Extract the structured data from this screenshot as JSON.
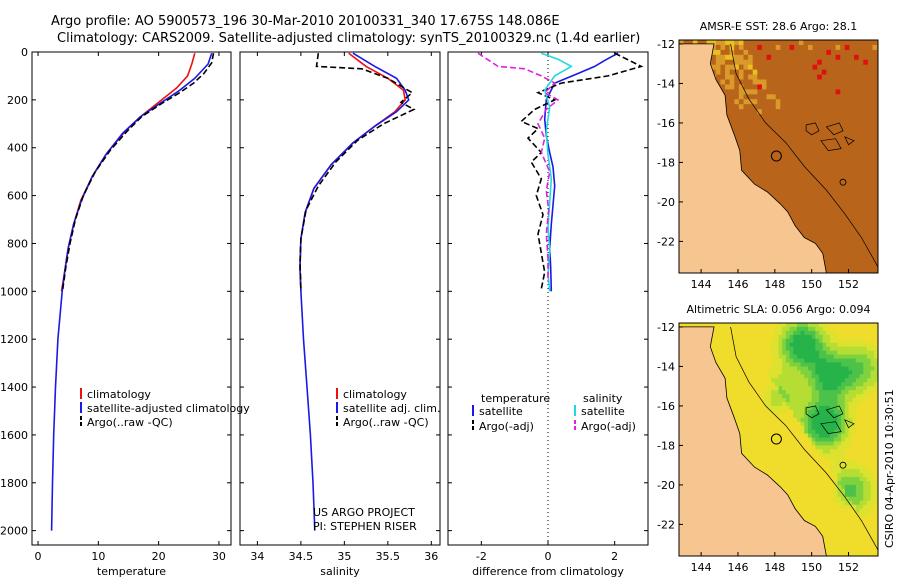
{
  "header": {
    "line1": "Argo profile: AO 5900573_196 30-Mar-2010 20100331_340 17.675S 148.086E",
    "line2": "Climatology: CARS2009. Satellite-adjusted climatology: synTS_20100329.nc (1.4d earlier)"
  },
  "colors": {
    "climatology": "#e11",
    "satellite": "#1a1ae6",
    "argo": "#000000",
    "sal_satellite": "#22d8e0",
    "sal_argo": "#e020e0",
    "land": "#f7c58f"
  },
  "chart_data": [
    {
      "id": "temperature",
      "type": "line",
      "xlabel": "temperature",
      "ylabel": "",
      "xlim": [
        -1,
        32
      ],
      "ylim": [
        2060,
        0
      ],
      "xticks": [
        0,
        10,
        20,
        30
      ],
      "yticks": [
        0,
        200,
        400,
        600,
        800,
        1000,
        1200,
        1400,
        1600,
        1800,
        2000
      ],
      "legend": [
        "climatology",
        "satellite-adjusted climatology",
        "Argo(..raw -QC)"
      ],
      "series": [
        {
          "name": "climatology",
          "style": "solid",
          "color": "#e11",
          "points": [
            [
              26,
              5
            ],
            [
              25.5,
              50
            ],
            [
              24.8,
              100
            ],
            [
              23,
              150
            ],
            [
              20.5,
              200
            ],
            [
              17.5,
              260
            ],
            [
              14.5,
              330
            ],
            [
              11.5,
              420
            ],
            [
              9,
              520
            ],
            [
              7.1,
              620
            ],
            [
              5.9,
              720
            ],
            [
              5,
              820
            ],
            [
              4.4,
              920
            ],
            [
              3.9,
              1000
            ]
          ]
        },
        {
          "name": "satellite-adjusted climatology",
          "style": "solid",
          "color": "#1a1ae6",
          "points": [
            [
              28.8,
              5
            ],
            [
              28.2,
              50
            ],
            [
              26,
              110
            ],
            [
              23.5,
              160
            ],
            [
              20.5,
              210
            ],
            [
              17,
              270
            ],
            [
              14,
              340
            ],
            [
              11.2,
              430
            ],
            [
              9,
              520
            ],
            [
              7.2,
              620
            ],
            [
              5.9,
              720
            ],
            [
              5,
              820
            ],
            [
              4.4,
              920
            ],
            [
              4,
              1000
            ],
            [
              3.3,
              1200
            ],
            [
              2.9,
              1400
            ],
            [
              2.6,
              1600
            ],
            [
              2.4,
              1800
            ],
            [
              2.25,
              2000
            ]
          ]
        },
        {
          "name": "Argo(..raw -QC)",
          "style": "dashed",
          "color": "#000",
          "points": [
            [
              29.1,
              5
            ],
            [
              28.8,
              45
            ],
            [
              27.5,
              90
            ],
            [
              25.8,
              130
            ],
            [
              23.5,
              170
            ],
            [
              20.5,
              215
            ],
            [
              17.2,
              270
            ],
            [
              14.8,
              330
            ],
            [
              12,
              410
            ],
            [
              9.5,
              500
            ],
            [
              7.5,
              600
            ],
            [
              6.2,
              700
            ],
            [
              5.3,
              800
            ],
            [
              4.6,
              900
            ],
            [
              4.1,
              990
            ]
          ]
        }
      ]
    },
    {
      "id": "salinity",
      "type": "line",
      "xlabel": "salinity",
      "xlim": [
        33.8,
        36.1
      ],
      "ylim": [
        2060,
        0
      ],
      "xticks": [
        34,
        34.5,
        35,
        35.5,
        36
      ],
      "yticks": [
        0,
        200,
        400,
        600,
        800,
        1000,
        1200,
        1400,
        1600,
        1800,
        2000
      ],
      "legend": [
        "climatology",
        "satellite adj. clim.",
        "Argo(..raw -QC)"
      ],
      "annotations": [
        "US ARGO PROJECT",
        "PI: STEPHEN RISER"
      ],
      "series": [
        {
          "name": "climatology",
          "style": "solid",
          "color": "#e11",
          "points": [
            [
              35.05,
              5
            ],
            [
              35.25,
              60
            ],
            [
              35.5,
              110
            ],
            [
              35.68,
              160
            ],
            [
              35.7,
              200
            ],
            [
              35.58,
              250
            ],
            [
              35.35,
              310
            ],
            [
              35.1,
              380
            ],
            [
              34.85,
              470
            ],
            [
              34.65,
              570
            ],
            [
              34.55,
              670
            ],
            [
              34.5,
              780
            ],
            [
              34.49,
              900
            ],
            [
              34.5,
              1000
            ]
          ]
        },
        {
          "name": "satellite adj. clim.",
          "style": "solid",
          "color": "#1a1ae6",
          "points": [
            [
              35.1,
              5
            ],
            [
              35.35,
              60
            ],
            [
              35.6,
              110
            ],
            [
              35.7,
              160
            ],
            [
              35.74,
              200
            ],
            [
              35.6,
              250
            ],
            [
              35.35,
              310
            ],
            [
              35.1,
              380
            ],
            [
              34.85,
              470
            ],
            [
              34.65,
              570
            ],
            [
              34.55,
              670
            ],
            [
              34.5,
              780
            ],
            [
              34.49,
              900
            ],
            [
              34.5,
              1000
            ],
            [
              34.53,
              1200
            ],
            [
              34.57,
              1400
            ],
            [
              34.61,
              1600
            ],
            [
              34.64,
              1800
            ],
            [
              34.66,
              2000
            ]
          ]
        },
        {
          "name": "Argo(..raw -QC)",
          "style": "dashed",
          "color": "#000",
          "points": [
            [
              34.7,
              5
            ],
            [
              34.68,
              60
            ],
            [
              35.2,
              70
            ],
            [
              35.5,
              110
            ],
            [
              35.78,
              170
            ],
            [
              35.65,
              210
            ],
            [
              35.8,
              240
            ],
            [
              35.45,
              300
            ],
            [
              35.15,
              370
            ],
            [
              34.9,
              460
            ],
            [
              34.7,
              560
            ],
            [
              34.56,
              660
            ],
            [
              34.5,
              780
            ],
            [
              34.49,
              880
            ],
            [
              34.5,
              990
            ]
          ]
        }
      ]
    },
    {
      "id": "difference",
      "type": "line",
      "xlabel": "difference from climatology",
      "xlim": [
        -3,
        3
      ],
      "ylim": [
        2060,
        0
      ],
      "xticks": [
        -2,
        0,
        2
      ],
      "yticks": [
        0,
        200,
        400,
        600,
        800,
        1000,
        1200,
        1400,
        1600,
        1800,
        2000
      ],
      "legend_headers": [
        "temperature",
        "salinity"
      ],
      "legend": [
        "satellite",
        "Argo(-adj)",
        "satellite",
        "Argo(-adj)"
      ],
      "series": [
        {
          "name": "temperature satellite",
          "style": "solid",
          "color": "#1a1ae6",
          "points": [
            [
              2.1,
              5
            ],
            [
              1.7,
              35
            ],
            [
              1.4,
              60
            ],
            [
              0.9,
              90
            ],
            [
              0.2,
              130
            ],
            [
              -0.05,
              200
            ],
            [
              -0.1,
              280
            ],
            [
              -0.05,
              350
            ],
            [
              0.05,
              420
            ],
            [
              0.15,
              480
            ],
            [
              0.2,
              560
            ],
            [
              0.15,
              640
            ],
            [
              0.1,
              720
            ],
            [
              0.05,
              820
            ],
            [
              0.08,
              900
            ],
            [
              0.1,
              1000
            ]
          ]
        },
        {
          "name": "temperature Argo(-adj)",
          "style": "dashed",
          "color": "#000",
          "points": [
            [
              2.0,
              5
            ],
            [
              2.8,
              60
            ],
            [
              1.8,
              100
            ],
            [
              0.4,
              130
            ],
            [
              -0.3,
              170
            ],
            [
              0.2,
              200
            ],
            [
              -0.4,
              240
            ],
            [
              -0.8,
              290
            ],
            [
              -0.3,
              320
            ],
            [
              -0.6,
              360
            ],
            [
              -0.2,
              420
            ],
            [
              -0.5,
              460
            ],
            [
              -0.2,
              530
            ],
            [
              -0.35,
              600
            ],
            [
              -0.15,
              680
            ],
            [
              -0.3,
              760
            ],
            [
              -0.2,
              840
            ],
            [
              -0.1,
              920
            ],
            [
              -0.2,
              990
            ]
          ]
        },
        {
          "name": "salinity satellite",
          "style": "solid",
          "color": "#22d8e0",
          "points": [
            [
              -0.2,
              5
            ],
            [
              0.3,
              30
            ],
            [
              0.7,
              60
            ],
            [
              0.2,
              100
            ],
            [
              -0.1,
              160
            ],
            [
              0.05,
              230
            ],
            [
              -0.05,
              330
            ],
            [
              0,
              430
            ],
            [
              0.1,
              530
            ],
            [
              0.05,
              630
            ],
            [
              0,
              730
            ],
            [
              0.05,
              830
            ],
            [
              0,
              930
            ],
            [
              0.05,
              1000
            ]
          ]
        },
        {
          "name": "salinity Argo(-adj)",
          "style": "dashed",
          "color": "#e020e0",
          "points": [
            [
              -2.1,
              5
            ],
            [
              -1.5,
              60
            ],
            [
              -0.7,
              70
            ],
            [
              -0.2,
              100
            ],
            [
              0.2,
              130
            ],
            [
              -0.1,
              170
            ],
            [
              0.3,
              200
            ],
            [
              -0.05,
              240
            ],
            [
              -0.3,
              300
            ],
            [
              -0.1,
              360
            ],
            [
              -0.2,
              420
            ],
            [
              0.05,
              500
            ],
            [
              -0.05,
              580
            ],
            [
              0.02,
              660
            ],
            [
              -0.05,
              760
            ],
            [
              0,
              860
            ],
            [
              0,
              960
            ]
          ]
        }
      ]
    },
    {
      "id": "sst-map",
      "type": "heatmap",
      "title": "AMSR-E SST: 28.6 Argo: 28.1",
      "xlim": [
        142.8,
        153.6
      ],
      "ylim": [
        -23.6,
        -11.8
      ],
      "xticks": [
        144,
        146,
        148,
        150,
        152
      ],
      "yticks": [
        -12,
        -14,
        -16,
        -18,
        -20,
        -22
      ],
      "argo_position": [
        148.086,
        -17.675
      ]
    },
    {
      "id": "sla-map",
      "type": "heatmap",
      "title": "Altimetric SLA: 0.056 Argo: 0.094",
      "xlim": [
        142.8,
        153.6
      ],
      "ylim": [
        -23.6,
        -11.8
      ],
      "xticks": [
        144,
        146,
        148,
        150,
        152
      ],
      "yticks": [
        -12,
        -14,
        -16,
        -18,
        -20,
        -22
      ],
      "argo_position": [
        148.086,
        -17.675
      ]
    }
  ],
  "side_label": "CSIRO 04-Apr-2010 10:30:51"
}
